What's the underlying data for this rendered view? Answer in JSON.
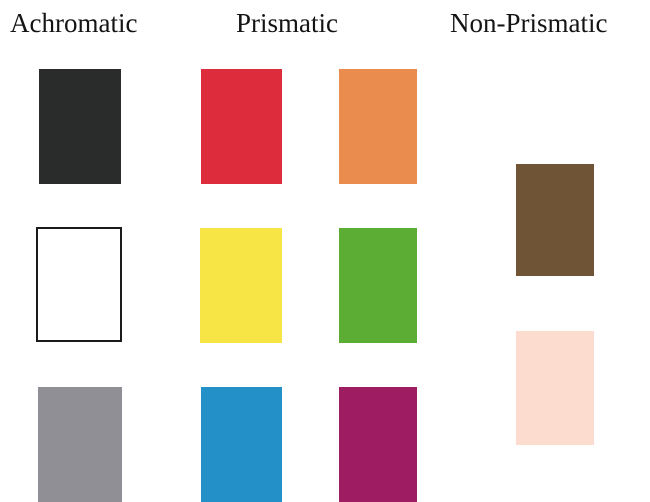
{
  "headings": {
    "achromatic": "Achromatic",
    "prismatic": "Prismatic",
    "non_prismatic": "Non-Prismatic"
  },
  "swatches": {
    "achromatic": [
      {
        "color_name": "black",
        "color": "#2a2b2b"
      },
      {
        "color_name": "white",
        "color": "#ffffff"
      },
      {
        "color_name": "gray",
        "color": "#8f8f95"
      }
    ],
    "prismatic": [
      {
        "color_name": "red",
        "color": "#dd2c3c"
      },
      {
        "color_name": "orange",
        "color": "#e98c4e"
      },
      {
        "color_name": "yellow",
        "color": "#f6e545"
      },
      {
        "color_name": "green",
        "color": "#5bad33"
      },
      {
        "color_name": "blue",
        "color": "#2390c8"
      },
      {
        "color_name": "magenta",
        "color": "#9e1c62"
      }
    ],
    "non_prismatic": [
      {
        "color_name": "brown",
        "color": "#6f5436"
      },
      {
        "color_name": "pale-pink",
        "color": "#fcdcce"
      }
    ]
  }
}
